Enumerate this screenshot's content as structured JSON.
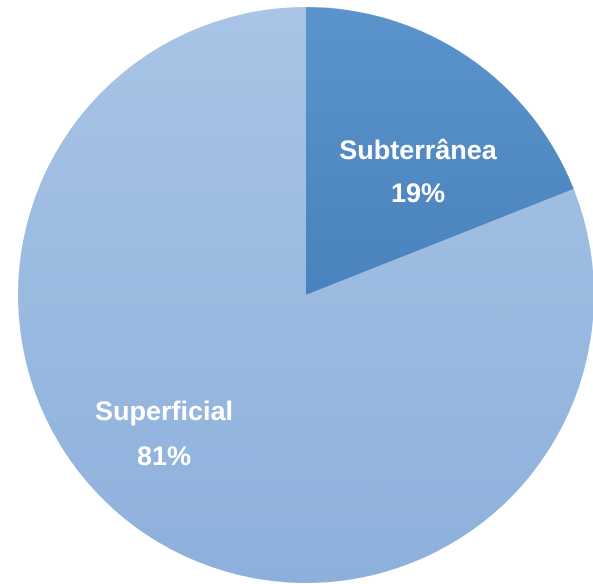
{
  "chart_data": {
    "type": "pie",
    "title": "",
    "start_angle_deg": 0,
    "direction": "clockwise",
    "legend": "none",
    "slices": [
      {
        "name": "Subterrânea",
        "value": 19,
        "value_label": "19%",
        "color": "#4a82bd",
        "color_light": "#5b93cc"
      },
      {
        "name": "Superficial",
        "value": 81,
        "value_label": "81%",
        "color": "#8db0db",
        "color_light": "#a8c4e6"
      }
    ]
  }
}
